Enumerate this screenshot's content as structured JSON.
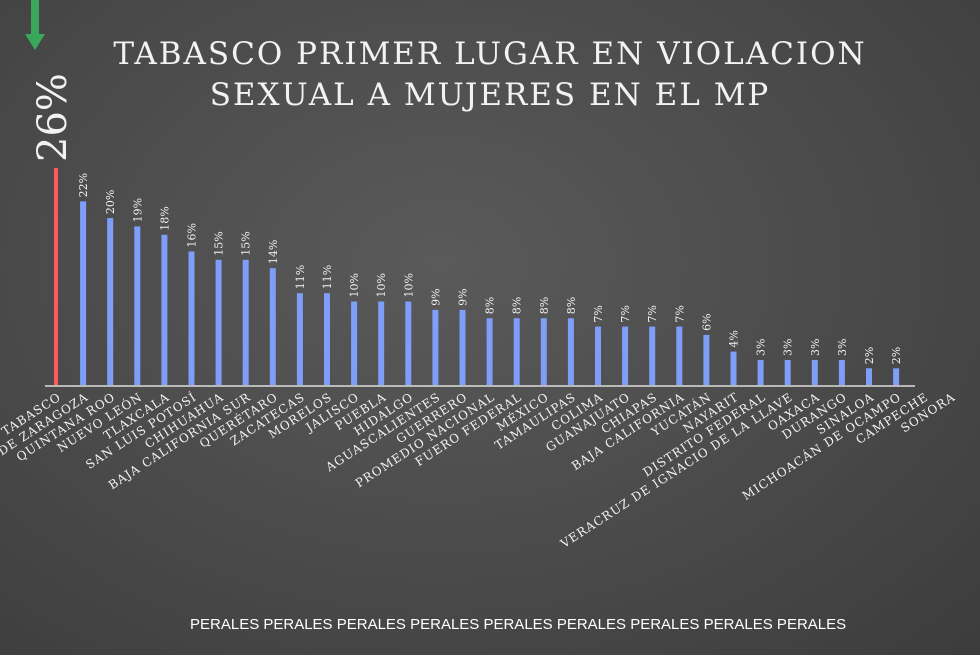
{
  "slide": {
    "title_line1": "TABASCO PRIMER LUGAR EN VIOLACION",
    "title_line2": "SEXUAL A MUJERES EN EL MP",
    "callout_value": "26%",
    "watermark": "PERALES PERALES PERALES PERALES PERALES PERALES PERALES PERALES PERALES",
    "colors": {
      "highlight_bar": "#ff5a5a",
      "bar": "#7e9ef8",
      "arrow": "#3aa85a",
      "text": "#f2f2f2"
    },
    "icons": [
      "down-arrow-icon"
    ]
  },
  "chart_data": {
    "type": "bar",
    "title": "TABASCO PRIMER LUGAR EN VIOLACION SEXUAL A MUJERES EN EL MP",
    "xlabel": "",
    "ylabel": "",
    "ylim": [
      0,
      26
    ],
    "grid": false,
    "legend": "none",
    "highlight_category": "TABASCO",
    "categories": [
      "TABASCO",
      "COAHUILA DE ZARAGOZA",
      "QUINTANA ROO",
      "NUEVO LEÓN",
      "TLAXCALA",
      "SAN LUIS POTOSÍ",
      "CHIHUAHUA",
      "BAJA CALIFORNIA SUR",
      "QUERÉTARO",
      "ZACATECAS",
      "MORELOS",
      "JALISCO",
      "PUEBLA",
      "HIDALGO",
      "AGUASCALIENTES",
      "GUERRERO",
      "PROMEDIO NACIONAL",
      "FUERO FEDERAL",
      "MÉXICO",
      "TAMAULIPAS",
      "COLIMA",
      "GUANAJUATO",
      "CHIAPAS",
      "BAJA CALIFORNIA",
      "YUCATÁN",
      "NAYARIT",
      "DISTRITO FEDERAL",
      "VERACRUZ DE IGNACIO DE LA LLAVE",
      "OAXACA",
      "DURANGO",
      "SINALOA",
      "MICHOACÁN DE OCAMPO",
      "CAMPECHE",
      "SONORA"
    ],
    "values": [
      26,
      22,
      20,
      19,
      18,
      16,
      15,
      15,
      14,
      11,
      11,
      10,
      10,
      10,
      9,
      9,
      8,
      8,
      8,
      8,
      7,
      7,
      7,
      7,
      6,
      4,
      3,
      3,
      3,
      3,
      2,
      2,
      null,
      null
    ],
    "value_labels": [
      "26%",
      "22%",
      "20%",
      "19%",
      "18%",
      "16%",
      "15%",
      "15%",
      "14%",
      "11%",
      "11%",
      "10%",
      "10%",
      "10%",
      "9%",
      "9%",
      "8%",
      "8%",
      "8%",
      "8%",
      "7%",
      "7%",
      "7%",
      "7%",
      "6%",
      "4%",
      "3%",
      "3%",
      "3%",
      "3%",
      "2%",
      "2%",
      "",
      ""
    ]
  }
}
